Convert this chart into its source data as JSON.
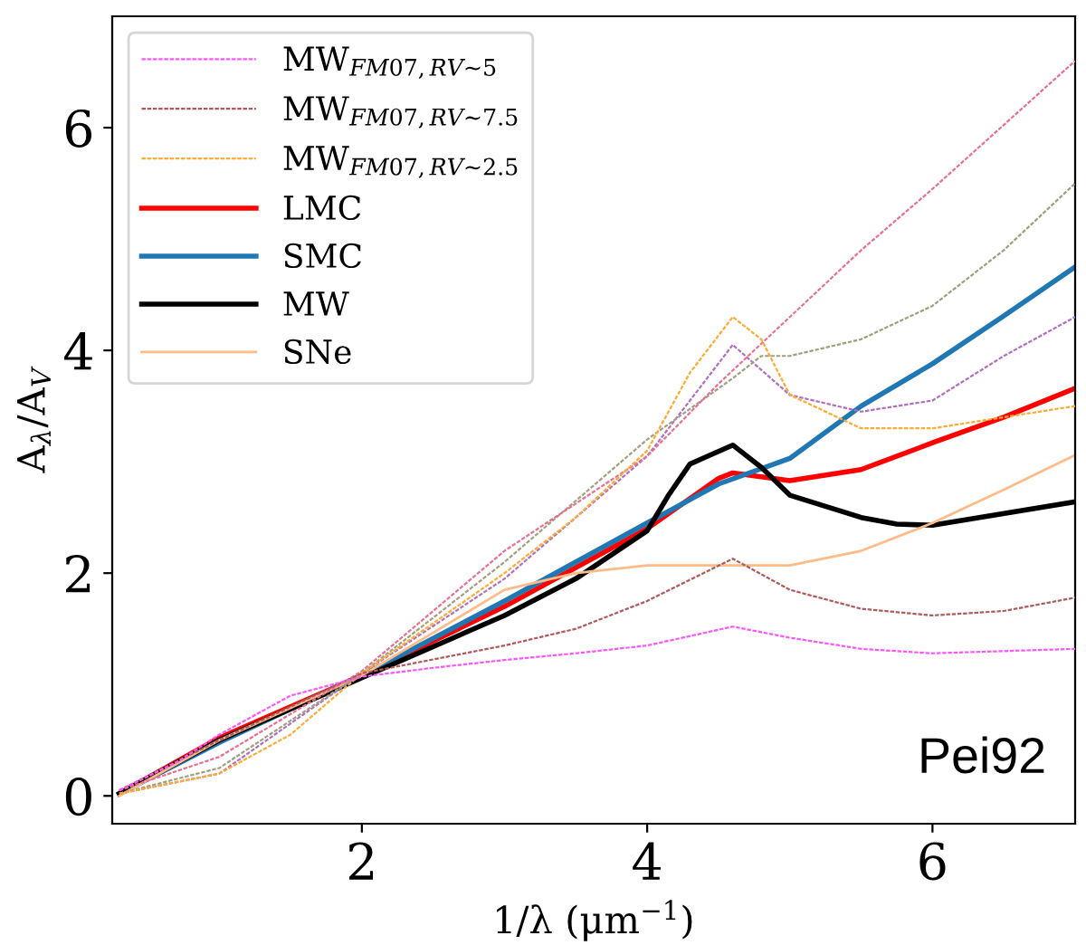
{
  "chart_data": {
    "type": "line",
    "xlabel": "1/λ (μm$^{−1}$)",
    "ylabel": "A$_{λ}$/A$_{V}$",
    "xlim": [
      0.25,
      7
    ],
    "ylim": [
      -0.25,
      7
    ],
    "xticks": [
      2,
      4,
      6
    ],
    "yticks": [
      0,
      2,
      4,
      6
    ],
    "grid": false,
    "legend": "top left",
    "line_style": "solid",
    "marker": "none",
    "annotations": [
      "Pei92"
    ],
    "series": [
      {
        "name": "MW$_{FM07,RV∼5}$",
        "color": "#ff55ff",
        "line_style": "dashed",
        "x": [
          0.3,
          0.7,
          1,
          1.5,
          2,
          2.5,
          3,
          3.5,
          4,
          4.6,
          5,
          5.5,
          6,
          7
        ],
        "values": [
          0.05,
          0.3,
          0.55,
          0.9,
          1.07,
          1.15,
          1.22,
          1.28,
          1.35,
          1.52,
          1.42,
          1.32,
          1.28,
          1.32
        ]
      },
      {
        "name": "MW$_{FM07,RV∼7.5}$",
        "color": "#b05a5a",
        "line_style": "dashed",
        "x": [
          0.3,
          1,
          2,
          3,
          3.5,
          4,
          4.6,
          5,
          5.5,
          6,
          6.5,
          7
        ],
        "values": [
          0.05,
          0.5,
          1.1,
          1.35,
          1.5,
          1.75,
          2.13,
          1.85,
          1.68,
          1.62,
          1.66,
          1.78
        ]
      },
      {
        "name": "MW$_{FM07,RV∼2.5}$",
        "color": "#ffaa33",
        "line_style": "dashed",
        "x": [
          0.3,
          1,
          1.5,
          2,
          3,
          3.5,
          4,
          4.3,
          4.6,
          4.8,
          5,
          5.5,
          6,
          6.5,
          7
        ],
        "values": [
          0.02,
          0.2,
          0.55,
          1.1,
          2.0,
          2.5,
          3.1,
          3.8,
          4.3,
          4.1,
          3.6,
          3.3,
          3.3,
          3.4,
          3.5
        ]
      },
      {
        "name": "LMC",
        "color": "#ff0000",
        "x": [
          0.3,
          1,
          2,
          3,
          4,
          4.5,
          4.6,
          5,
          5.5,
          6,
          6.5,
          7
        ],
        "values": [
          0.02,
          0.52,
          1.08,
          1.7,
          2.4,
          2.85,
          2.9,
          2.83,
          2.93,
          3.17,
          3.4,
          3.66
        ]
      },
      {
        "name": "SMC",
        "color": "#1f77b4",
        "x": [
          0.3,
          1,
          2,
          3,
          4,
          4.5,
          5,
          5.5,
          6,
          6.5,
          7
        ],
        "values": [
          0.02,
          0.48,
          1.08,
          1.75,
          2.45,
          2.8,
          3.03,
          3.5,
          3.88,
          4.31,
          4.75
        ]
      },
      {
        "name": "MW",
        "color": "#000000",
        "x": [
          0.3,
          1,
          2,
          3,
          3.5,
          4,
          4.15,
          4.3,
          4.6,
          4.8,
          5,
          5.5,
          5.75,
          6,
          7
        ],
        "values": [
          0.02,
          0.5,
          1.06,
          1.62,
          1.95,
          2.38,
          2.7,
          2.98,
          3.15,
          2.95,
          2.7,
          2.5,
          2.44,
          2.43,
          2.64
        ]
      },
      {
        "name": "SNe",
        "color": "#ffbb88",
        "line_style": "solid",
        "x": [
          0.3,
          1,
          2,
          3,
          3.5,
          4,
          5,
          5.5,
          6,
          6.5,
          7
        ],
        "values": [
          0.0,
          0.5,
          1.08,
          1.85,
          2.0,
          2.07,
          2.07,
          2.2,
          2.45,
          2.75,
          3.06
        ]
      },
      {
        "color": "#e87090",
        "line_style": "dashed",
        "x": [
          0.3,
          1,
          2,
          3,
          4,
          4.5,
          5,
          5.5,
          6,
          7
        ],
        "values": [
          0.05,
          0.35,
          1.12,
          2.2,
          3.05,
          3.7,
          4.3,
          4.9,
          5.45,
          6.6
        ]
      },
      {
        "color": "#a0a080",
        "line_style": "dashed",
        "x": [
          0.3,
          1,
          2,
          3,
          4,
          4.6,
          4.8,
          5,
          5.5,
          6,
          6.5,
          7
        ],
        "values": [
          0.02,
          0.25,
          1.1,
          2.1,
          3.2,
          3.75,
          3.95,
          3.95,
          4.1,
          4.4,
          4.9,
          5.5
        ]
      },
      {
        "color": "#b070c0",
        "line_style": "dashed",
        "x": [
          0.3,
          1,
          2,
          3,
          4,
          4.6,
          5,
          5.5,
          6,
          6.5,
          7
        ],
        "values": [
          0.02,
          0.2,
          1.1,
          1.95,
          3.05,
          4.05,
          3.6,
          3.45,
          3.55,
          3.95,
          4.3
        ]
      }
    ]
  }
}
